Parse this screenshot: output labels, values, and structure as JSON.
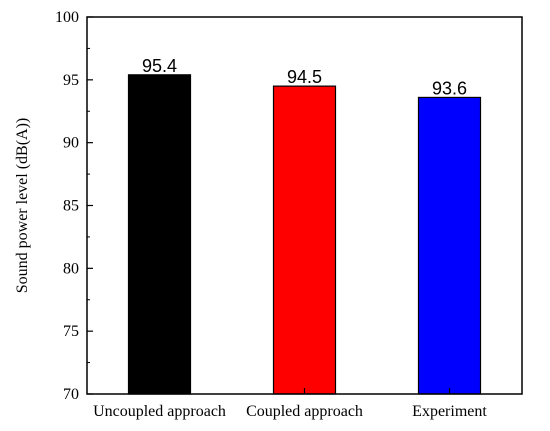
{
  "chart_data": {
    "type": "bar",
    "categories": [
      "Uncoupled approach",
      "Coupled approach",
      "Experiment"
    ],
    "values": [
      95.4,
      94.5,
      93.6
    ],
    "data_labels": [
      "95.4",
      "94.5",
      "93.6"
    ],
    "colors": [
      "#000000",
      "#ff0000",
      "#0000ff"
    ],
    "title": "",
    "xlabel": "",
    "ylabel": "Sound power level (dB(A))",
    "ylim": [
      70,
      100
    ],
    "yticks": [
      70,
      75,
      80,
      85,
      90,
      95,
      100
    ],
    "ytick_labels": [
      "70",
      "75",
      "80",
      "85",
      "90",
      "95",
      "100"
    ],
    "grid": false,
    "legend": "none"
  }
}
